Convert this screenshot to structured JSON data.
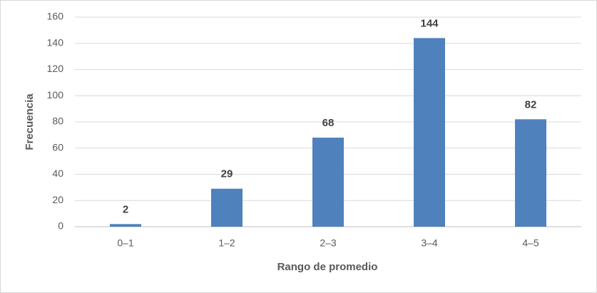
{
  "chart_data": {
    "type": "bar",
    "x_label": "Rango de promedio",
    "y_label": "Frecuencia",
    "categories": [
      "0–1",
      "1–2",
      "2–3",
      "3–4",
      "4–5"
    ],
    "values": [
      2,
      29,
      68,
      144,
      82
    ],
    "color": "#4f81bd",
    "ylim": [
      0,
      160
    ],
    "yticks": [
      0,
      20,
      40,
      60,
      80,
      100,
      120,
      140,
      160
    ],
    "grid": true
  }
}
